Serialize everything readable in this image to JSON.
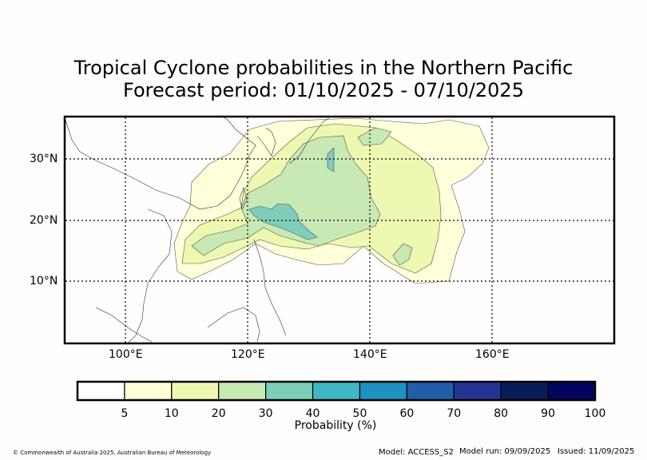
{
  "title": {
    "line1": "Tropical Cyclone probabilities in the Northern Pacific",
    "line2": "Forecast period: 01/10/2025 - 07/10/2025"
  },
  "axes": {
    "lat_labels": [
      "30°N",
      "20°N",
      "10°N"
    ],
    "lon_labels": [
      "100°E",
      "120°E",
      "140°E",
      "160°E"
    ],
    "lat_values": [
      30,
      20,
      10
    ],
    "lon_values": [
      100,
      120,
      140,
      160
    ],
    "lon_range": [
      90,
      180
    ],
    "lat_range": [
      0,
      37
    ],
    "grid": "dotted"
  },
  "colorbar": {
    "label": "Probability (%)",
    "ticks": [
      "5",
      "10",
      "20",
      "30",
      "40",
      "50",
      "60",
      "70",
      "80",
      "90",
      "100"
    ],
    "colors": [
      "#ffffff",
      "#ffffd9",
      "#edf8b1",
      "#c7e9b4",
      "#7fcdbb",
      "#41b6c4",
      "#1d91c0",
      "#225ea8",
      "#253494",
      "#081d58",
      "#03045e"
    ]
  },
  "footer": {
    "copyright": "© Commonwealth of Australia 2025, Australian Bureau of Meteorology",
    "model": "Model: ACCESS_S2",
    "model_run": "Model run: 09/09/2025",
    "issued": "Issued: 11/09/2025"
  }
}
